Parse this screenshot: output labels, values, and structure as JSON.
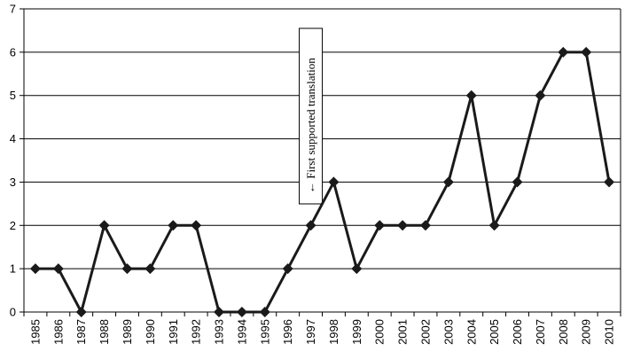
{
  "chart_data": {
    "type": "line",
    "title": "",
    "xlabel": "",
    "ylabel": "",
    "x": [
      "1985",
      "1986",
      "1987",
      "1988",
      "1989",
      "1990",
      "1991",
      "1992",
      "1993",
      "1994",
      "1995",
      "1996",
      "1997",
      "1998",
      "1999",
      "2000",
      "2001",
      "2002",
      "2003",
      "2004",
      "2005",
      "2006",
      "2007",
      "2008",
      "2009",
      "2010"
    ],
    "series": [
      {
        "values": [
          1,
          1,
          0,
          2,
          1,
          1,
          2,
          2,
          0,
          0,
          0,
          1,
          2,
          3,
          1,
          2,
          2,
          2,
          3,
          5,
          2,
          3,
          5,
          6,
          6,
          3
        ]
      }
    ],
    "ylim": [
      0,
      7
    ],
    "yticks": [
      "0",
      "1",
      "2",
      "3",
      "4",
      "5",
      "6",
      "7"
    ],
    "grid": true,
    "line_color": "#1a1a1a",
    "annotation": {
      "text": "← First supported translation",
      "x": "1997"
    }
  }
}
